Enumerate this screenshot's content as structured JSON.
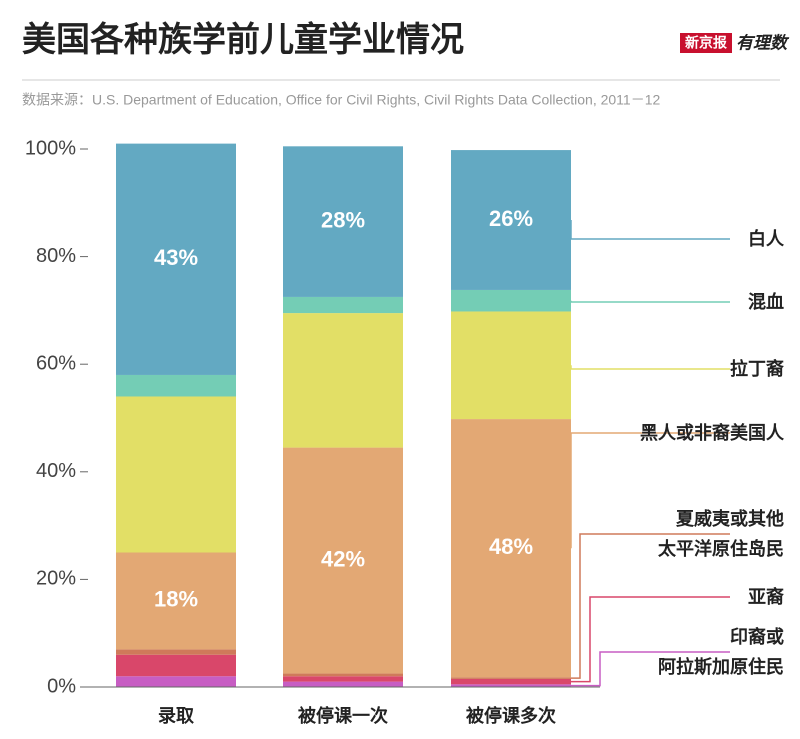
{
  "brand": {
    "paper": "新京报",
    "column": "有理数"
  },
  "chart_data": {
    "type": "stacked_bar",
    "title": "美国各种族学前儿童学业情况",
    "source": "数据来源：U.S. Department of Education, Office for Civil Rights, Civil Rights Data Collection, 2011－12",
    "categories": [
      "录取",
      "被停课一次",
      "被停课多次"
    ],
    "ylim": [
      0,
      100
    ],
    "yticks": [
      {
        "value": 0,
        "label": "0%"
      },
      {
        "value": 20,
        "label": "20%"
      },
      {
        "value": 40,
        "label": "40%"
      },
      {
        "value": 60,
        "label": "60%"
      },
      {
        "value": 80,
        "label": "80%"
      },
      {
        "value": 100,
        "label": "100%"
      }
    ],
    "series": [
      {
        "name": "印裔或\n阿拉斯加原住民",
        "color": "#c75dc3",
        "values": [
          2,
          1,
          0.5
        ]
      },
      {
        "name": "亚裔",
        "color": "#d9476a",
        "values": [
          4,
          1,
          1
        ]
      },
      {
        "name": "夏威夷或其他\n太平洋原住岛民",
        "color": "#cf7a5a",
        "values": [
          1,
          0.5,
          0.3
        ]
      },
      {
        "name": "黑人或非裔美国人",
        "color": "#e3a874",
        "values": [
          18,
          42,
          48
        ],
        "value_labels": [
          "18%",
          "42%",
          "48%"
        ]
      },
      {
        "name": "拉丁裔",
        "color": "#e2df66",
        "values": [
          29,
          25,
          20
        ]
      },
      {
        "name": "混血",
        "color": "#74cdb5",
        "values": [
          4,
          3,
          4
        ]
      },
      {
        "name": "白人",
        "color": "#63a9c2",
        "values": [
          43,
          28,
          26
        ],
        "value_labels": [
          "43%",
          "28%",
          "26%"
        ]
      }
    ]
  }
}
